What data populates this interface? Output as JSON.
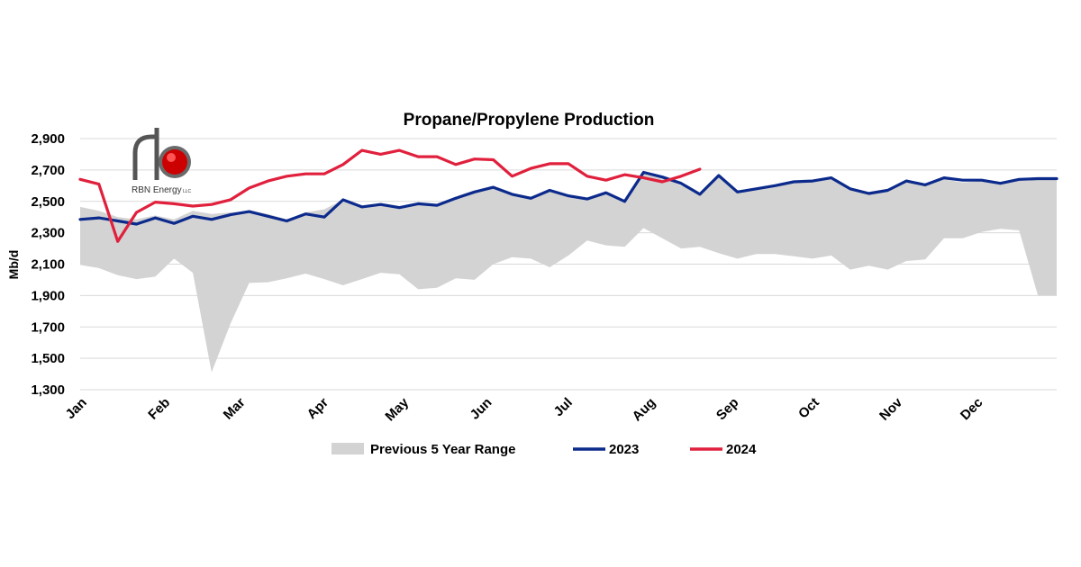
{
  "chart_data": {
    "type": "line",
    "title": "Propane/Propylene Production",
    "ylabel": "Mb/d",
    "ylim": [
      1300,
      2900
    ],
    "yticks": [
      1300,
      1500,
      1700,
      1900,
      2100,
      2300,
      2500,
      2700,
      2900
    ],
    "ytick_labels": [
      "1,300",
      "1,500",
      "1,700",
      "1,900",
      "2,100",
      "2,300",
      "2,500",
      "2,700",
      "2,900"
    ],
    "x_unit": "week",
    "xlim": [
      1,
      53
    ],
    "month_labels": [
      "Jan",
      "Feb",
      "Mar",
      "Apr",
      "May",
      "Jun",
      "Jul",
      "Aug",
      "Sep",
      "Oct",
      "Nov",
      "Dec"
    ],
    "month_positions": [
      1,
      5.43,
      9.43,
      13.86,
      18.14,
      22.57,
      26.86,
      31.29,
      35.71,
      40,
      44.43,
      48.71
    ],
    "grid": "horizontal",
    "legend_position": "bottom",
    "range_band": {
      "name": "Previous 5 Year Range",
      "color": "#d3d3d3",
      "min": [
        2095,
        2075,
        2030,
        2005,
        2020,
        2135,
        2045,
        1410,
        1720,
        1980,
        1985,
        2010,
        2040,
        2005,
        1965,
        2005,
        2045,
        2035,
        1940,
        1950,
        2010,
        2000,
        2100,
        2145,
        2135,
        2080,
        2155,
        2250,
        2220,
        2210,
        2330,
        2265,
        2200,
        2210,
        2170,
        2135,
        2165,
        2165,
        2150,
        2135,
        2155,
        2065,
        2090,
        2065,
        2120,
        2130,
        2265,
        2265,
        2305,
        2325,
        2315,
        1900,
        1900
      ],
      "max": [
        2465,
        2440,
        2400,
        2385,
        2410,
        2385,
        2440,
        2420,
        2430,
        2440,
        2420,
        2385,
        2430,
        2450,
        2510,
        2470,
        2490,
        2470,
        2490,
        2480,
        2530,
        2570,
        2590,
        2550,
        2520,
        2580,
        2540,
        2520,
        2560,
        2500,
        2680,
        2650,
        2600,
        2550,
        2670,
        2570,
        2580,
        2600,
        2620,
        2630,
        2640,
        2590,
        2560,
        2580,
        2630,
        2610,
        2640,
        2620,
        2630,
        2620,
        2640,
        2640,
        2640
      ]
    },
    "series": [
      {
        "name": "2023",
        "color": "#0b2a8c",
        "values": [
          2385,
          2395,
          2375,
          2355,
          2395,
          2360,
          2405,
          2385,
          2415,
          2435,
          2405,
          2375,
          2420,
          2400,
          2510,
          2465,
          2480,
          2460,
          2485,
          2475,
          2520,
          2560,
          2590,
          2545,
          2520,
          2570,
          2535,
          2515,
          2555,
          2500,
          2685,
          2655,
          2615,
          2545,
          2665,
          2560,
          2580,
          2600,
          2625,
          2630,
          2650,
          2580,
          2550,
          2570,
          2630,
          2605,
          2650,
          2635,
          2635,
          2615,
          2640,
          2645,
          2645
        ]
      },
      {
        "name": "2024",
        "color": "#e0203c",
        "values": [
          2640,
          2610,
          2245,
          2430,
          2495,
          2485,
          2470,
          2480,
          2510,
          2585,
          2630,
          2660,
          2675,
          2675,
          2735,
          2825,
          2800,
          2825,
          2785,
          2785,
          2735,
          2770,
          2765,
          2660,
          2710,
          2740,
          2740,
          2660,
          2635,
          2670,
          2650,
          2625,
          2660,
          2705
        ]
      }
    ]
  },
  "logo": {
    "brand": "RBN Energy",
    "suffix": "LLC"
  }
}
